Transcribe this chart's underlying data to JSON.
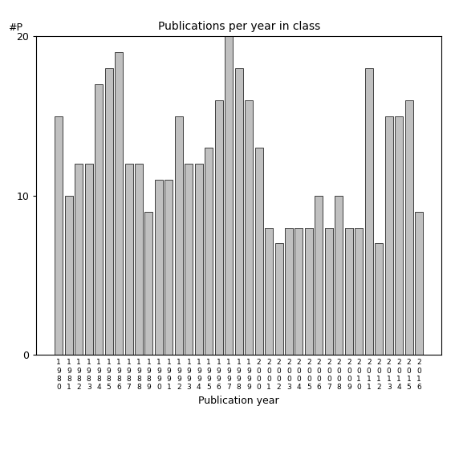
{
  "title": "Publications per year in class",
  "xlabel": "Publication year",
  "ylabel": "#P",
  "years": [
    "1980",
    "1981",
    "1982",
    "1983",
    "1984",
    "1985",
    "1986",
    "1987",
    "1988",
    "1989",
    "1990",
    "1991",
    "1992",
    "1993",
    "1994",
    "1995",
    "1996",
    "1997",
    "1998",
    "1999",
    "2000",
    "2001",
    "2002",
    "2003",
    "2004",
    "2005",
    "2006",
    "2007",
    "2008",
    "2009",
    "2010",
    "2011",
    "2012",
    "2013",
    "2014",
    "2015",
    "2016"
  ],
  "bar_values": [
    15,
    10,
    12,
    12,
    17,
    18,
    19,
    12,
    12,
    9,
    11,
    11,
    15,
    12,
    12,
    13,
    16,
    20,
    18,
    16,
    13,
    8,
    7,
    8,
    8,
    8,
    10,
    8,
    10,
    8,
    8,
    18,
    7,
    15,
    15,
    16,
    9
  ],
  "bar_color": "#c0c0c0",
  "bar_edge_color": "#000000",
  "ylim": [
    0,
    20
  ],
  "yticks": [
    0,
    10,
    20
  ],
  "figsize": [
    5.67,
    5.67
  ],
  "dpi": 100
}
